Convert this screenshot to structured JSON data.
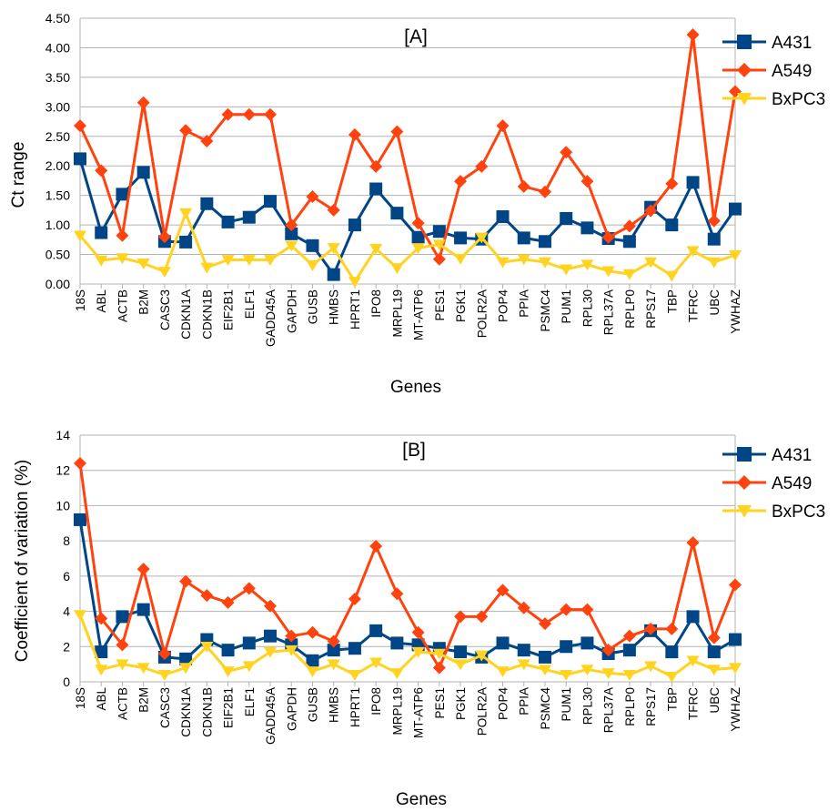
{
  "chart_data": [
    {
      "type": "line",
      "annotation": "[A]",
      "xlabel": "Genes",
      "ylabel": "Ct range",
      "ylim": [
        0,
        4.5
      ],
      "y_ticks": [
        "0.00",
        "0.50",
        "1.00",
        "1.50",
        "2.00",
        "2.50",
        "3.00",
        "3.50",
        "4.00",
        "4.50"
      ],
      "grid": "horizontal",
      "legend_position": "top-right",
      "categories": [
        "18S",
        "ABL",
        "ACTB",
        "B2M",
        "CASC3",
        "CDKN1A",
        "CDKN1B",
        "EIF2B1",
        "ELF1",
        "GADD45A",
        "GAPDH",
        "GUSB",
        "HMBS",
        "HPRT1",
        "IPO8",
        "MRPL19",
        "MT-ATP6",
        "PES1",
        "PGK1",
        "POLR2A",
        "POP4",
        "PPIA",
        "PSMC4",
        "PUM1",
        "RPL30",
        "RPL37A",
        "RPLP0",
        "RPS17",
        "TBP",
        "TFRC",
        "UBC",
        "YWHAZ"
      ],
      "series": [
        {
          "name": "A431",
          "color": "#004586",
          "marker": "square",
          "values": [
            2.12,
            0.87,
            1.52,
            1.89,
            0.72,
            0.71,
            1.36,
            1.05,
            1.13,
            1.4,
            0.85,
            0.65,
            0.16,
            1.0,
            1.61,
            1.2,
            0.79,
            0.89,
            0.78,
            0.76,
            1.14,
            0.78,
            0.72,
            1.11,
            0.95,
            0.77,
            0.72,
            1.3,
            1.0,
            1.72,
            0.76,
            1.27
          ]
        },
        {
          "name": "A549",
          "color": "#ff420e",
          "marker": "diamond",
          "values": [
            2.68,
            1.92,
            0.82,
            3.07,
            0.8,
            2.6,
            2.42,
            2.87,
            2.87,
            2.87,
            1.0,
            1.48,
            1.25,
            2.53,
            1.99,
            2.58,
            1.03,
            0.42,
            1.74,
            1.99,
            2.68,
            1.65,
            1.56,
            2.23,
            1.74,
            0.79,
            0.98,
            1.24,
            1.7,
            4.22,
            1.07,
            3.26
          ]
        },
        {
          "name": "BxPC3",
          "color": "#ffd320",
          "marker": "triangle-down",
          "values": [
            0.82,
            0.4,
            0.44,
            0.35,
            0.21,
            1.2,
            0.28,
            0.41,
            0.41,
            0.41,
            0.65,
            0.32,
            0.61,
            0.04,
            0.6,
            0.27,
            0.61,
            0.67,
            0.43,
            0.79,
            0.37,
            0.42,
            0.37,
            0.25,
            0.33,
            0.22,
            0.17,
            0.37,
            0.14,
            0.56,
            0.37,
            0.49
          ]
        }
      ]
    },
    {
      "type": "line",
      "annotation": "[B]",
      "xlabel": "Genes",
      "ylabel": "Coefficient of variation (%)",
      "ylim": [
        0,
        14
      ],
      "y_ticks": [
        "0",
        "2",
        "4",
        "6",
        "8",
        "10",
        "12",
        "14"
      ],
      "grid": "horizontal",
      "legend_position": "top-right",
      "categories": [
        "18S",
        "ABL",
        "ACTB",
        "B2M",
        "CASC3",
        "CDKN1A",
        "CDKN1B",
        "EIF2B1",
        "ELF1",
        "GADD45A",
        "GAPDH",
        "GUSB",
        "HMBS",
        "HPRT1",
        "IPO8",
        "MRPL19",
        "MT-ATP6",
        "PES1",
        "PGK1",
        "POLR2A",
        "POP4",
        "PPIA",
        "PSMC4",
        "PUM1",
        "RPL30",
        "RPL37A",
        "RPLP0",
        "RPS17",
        "TBP",
        "TFRC",
        "UBC",
        "YWHAZ"
      ],
      "series": [
        {
          "name": "A431",
          "color": "#004586",
          "marker": "square",
          "values": [
            9.2,
            1.7,
            3.7,
            4.1,
            1.4,
            1.3,
            2.4,
            1.8,
            2.2,
            2.6,
            2.1,
            1.2,
            1.8,
            1.9,
            2.9,
            2.2,
            2.1,
            1.9,
            1.7,
            1.4,
            2.2,
            1.8,
            1.4,
            2.0,
            2.2,
            1.6,
            1.8,
            2.9,
            1.7,
            3.7,
            1.7,
            2.4
          ]
        },
        {
          "name": "A549",
          "color": "#ff420e",
          "marker": "diamond",
          "values": [
            12.4,
            3.6,
            2.1,
            6.4,
            1.6,
            5.7,
            4.9,
            4.5,
            5.3,
            4.3,
            2.6,
            2.8,
            2.3,
            4.7,
            7.7,
            5.0,
            2.8,
            0.8,
            3.7,
            3.7,
            5.2,
            4.2,
            3.3,
            4.1,
            4.1,
            1.8,
            2.6,
            3.0,
            3.0,
            7.9,
            2.5,
            5.5
          ]
        },
        {
          "name": "BxPC3",
          "color": "#ffd320",
          "marker": "triangle-down",
          "values": [
            3.8,
            0.7,
            1.0,
            0.8,
            0.4,
            0.8,
            2.0,
            0.6,
            0.9,
            1.7,
            1.8,
            0.6,
            1.0,
            0.4,
            1.1,
            0.5,
            1.7,
            1.6,
            1.0,
            1.5,
            0.6,
            1.0,
            0.7,
            0.4,
            0.7,
            0.5,
            0.4,
            0.9,
            0.3,
            1.2,
            0.7,
            0.8
          ]
        }
      ]
    }
  ]
}
